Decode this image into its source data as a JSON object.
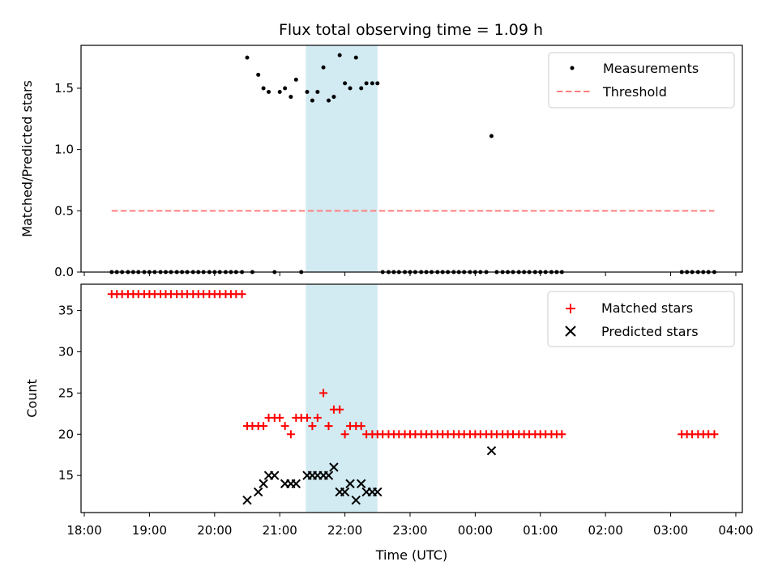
{
  "title": "Flux total observing time = 1.09 h",
  "xlabel": "Time (UTC)",
  "x_tick_labels": [
    "18:00",
    "19:00",
    "20:00",
    "21:00",
    "22:00",
    "23:00",
    "00:00",
    "01:00",
    "02:00",
    "03:00",
    "04:00"
  ],
  "colors": {
    "measurements": "#000000",
    "threshold": "#ff7f7f",
    "matched": "#ff0000",
    "predicted": "#000000",
    "highlight": "#add8e6"
  },
  "chart_data": [
    {
      "type": "scatter",
      "ylabel": "Matched/Predicted stars",
      "xlim_hours": [
        17.95,
        28.1
      ],
      "ylim": [
        0,
        1.85
      ],
      "y_ticks": [
        "0.0",
        "0.5",
        "1.0",
        "1.5"
      ],
      "highlight_span_hours": [
        21.4,
        22.5
      ],
      "legend": {
        "placement": "top-right",
        "entries": [
          "Measurements",
          "Threshold"
        ]
      },
      "threshold": {
        "name": "Threshold",
        "y": 0.5,
        "x_range_hours": [
          18.42,
          27.67
        ]
      },
      "series": [
        {
          "name": "Measurements",
          "marker": "dot",
          "x_hours": [
            18.42,
            18.5,
            18.58,
            18.67,
            18.75,
            18.83,
            18.92,
            19.0,
            19.08,
            19.17,
            19.25,
            19.33,
            19.42,
            19.5,
            19.58,
            19.67,
            19.75,
            19.83,
            19.92,
            20.0,
            20.08,
            20.17,
            20.25,
            20.33,
            20.42,
            20.5,
            20.58,
            20.67,
            20.75,
            20.83,
            20.92,
            21.0,
            21.08,
            21.17,
            21.25,
            21.33,
            21.42,
            21.5,
            21.58,
            21.67,
            21.75,
            21.83,
            21.92,
            22.0,
            22.08,
            22.17,
            22.25,
            22.33,
            22.42,
            22.5,
            22.58,
            22.67,
            22.75,
            22.83,
            22.92,
            23.0,
            23.08,
            23.17,
            23.25,
            23.33,
            23.42,
            23.5,
            23.58,
            23.67,
            23.75,
            23.83,
            23.92,
            24.0,
            24.08,
            24.17,
            24.25,
            24.33,
            24.42,
            24.5,
            24.58,
            24.67,
            24.75,
            24.83,
            24.92,
            25.0,
            25.08,
            25.17,
            25.25,
            25.33,
            27.17,
            27.25,
            27.33,
            27.42,
            27.5,
            27.58,
            27.67
          ],
          "y": [
            0,
            0,
            0,
            0,
            0,
            0,
            0,
            0,
            0,
            0,
            0,
            0,
            0,
            0,
            0,
            0,
            0,
            0,
            0,
            0,
            0,
            0,
            0,
            0,
            0,
            1.75,
            0,
            1.61,
            1.5,
            1.47,
            0,
            1.47,
            1.5,
            1.43,
            1.57,
            0,
            1.47,
            1.4,
            1.47,
            1.67,
            1.4,
            1.43,
            1.77,
            1.54,
            1.5,
            1.75,
            1.5,
            1.54,
            1.54,
            1.54,
            0,
            0,
            0,
            0,
            0,
            0,
            0,
            0,
            0,
            0,
            0,
            0,
            0,
            0,
            0,
            0,
            0,
            0,
            0,
            0,
            1.11,
            0,
            0,
            0,
            0,
            0,
            0,
            0,
            0,
            0,
            0,
            0,
            0,
            0,
            0,
            0,
            0,
            0,
            0,
            0,
            0
          ]
        }
      ]
    },
    {
      "type": "scatter",
      "ylabel": "Count",
      "xlim_hours": [
        17.95,
        28.1
      ],
      "ylim": [
        10.5,
        38.2
      ],
      "y_ticks": [
        "15",
        "20",
        "25",
        "30",
        "35"
      ],
      "highlight_span_hours": [
        21.4,
        22.5
      ],
      "legend": {
        "placement": "top-right",
        "entries": [
          "Matched stars",
          "Predicted stars"
        ]
      },
      "series": [
        {
          "name": "Matched stars",
          "marker": "plus",
          "x_hours": [
            18.42,
            18.5,
            18.58,
            18.67,
            18.75,
            18.83,
            18.92,
            19.0,
            19.08,
            19.17,
            19.25,
            19.33,
            19.42,
            19.5,
            19.58,
            19.67,
            19.75,
            19.83,
            19.92,
            20.0,
            20.08,
            20.17,
            20.25,
            20.33,
            20.42,
            20.5,
            20.58,
            20.67,
            20.75,
            20.83,
            20.92,
            21.0,
            21.08,
            21.17,
            21.25,
            21.33,
            21.42,
            21.5,
            21.58,
            21.67,
            21.75,
            21.83,
            21.92,
            22.0,
            22.08,
            22.17,
            22.25,
            22.33,
            22.42,
            22.5,
            22.58,
            22.67,
            22.75,
            22.83,
            22.92,
            23.0,
            23.08,
            23.17,
            23.25,
            23.33,
            23.42,
            23.5,
            23.58,
            23.67,
            23.75,
            23.83,
            23.92,
            24.0,
            24.08,
            24.17,
            24.25,
            24.33,
            24.42,
            24.5,
            24.58,
            24.67,
            24.75,
            24.83,
            24.92,
            25.0,
            25.08,
            25.17,
            25.25,
            25.33,
            27.17,
            27.25,
            27.33,
            27.42,
            27.5,
            27.58,
            27.67
          ],
          "y": [
            37,
            37,
            37,
            37,
            37,
            37,
            37,
            37,
            37,
            37,
            37,
            37,
            37,
            37,
            37,
            37,
            37,
            37,
            37,
            37,
            37,
            37,
            37,
            37,
            37,
            21,
            21,
            21,
            21,
            22,
            22,
            22,
            21,
            20,
            22,
            22,
            22,
            21,
            22,
            25,
            21,
            23,
            23,
            20,
            21,
            21,
            21,
            20,
            20,
            20,
            20,
            20,
            20,
            20,
            20,
            20,
            20,
            20,
            20,
            20,
            20,
            20,
            20,
            20,
            20,
            20,
            20,
            20,
            20,
            20,
            20,
            20,
            20,
            20,
            20,
            20,
            20,
            20,
            20,
            20,
            20,
            20,
            20,
            20,
            20,
            20,
            20,
            20,
            20,
            20,
            20
          ]
        },
        {
          "name": "Predicted stars",
          "marker": "x",
          "x_hours": [
            20.5,
            20.67,
            20.75,
            20.83,
            20.92,
            21.08,
            21.17,
            21.25,
            21.42,
            21.5,
            21.58,
            21.67,
            21.75,
            21.83,
            21.92,
            22.0,
            22.08,
            22.17,
            22.25,
            22.33,
            22.42,
            22.5,
            24.25
          ],
          "y": [
            12,
            13,
            14,
            15,
            15,
            14,
            14,
            14,
            15,
            15,
            15,
            15,
            15,
            16,
            13,
            13,
            14,
            12,
            14,
            13,
            13,
            13,
            18
          ]
        }
      ]
    }
  ]
}
